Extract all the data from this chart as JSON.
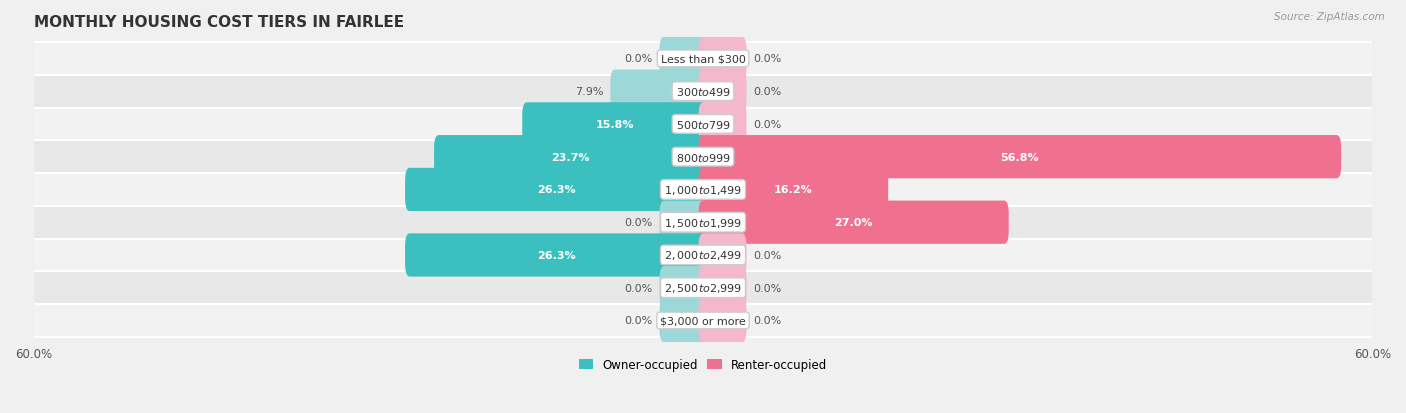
{
  "title": "MONTHLY HOUSING COST TIERS IN FAIRLEE",
  "source": "Source: ZipAtlas.com",
  "categories": [
    "Less than $300",
    "$300 to $499",
    "$500 to $799",
    "$800 to $999",
    "$1,000 to $1,499",
    "$1,500 to $1,999",
    "$2,000 to $2,499",
    "$2,500 to $2,999",
    "$3,000 or more"
  ],
  "owner_values": [
    0.0,
    7.9,
    15.8,
    23.7,
    26.3,
    0.0,
    26.3,
    0.0,
    0.0
  ],
  "renter_values": [
    0.0,
    0.0,
    0.0,
    56.8,
    16.2,
    27.0,
    0.0,
    0.0,
    0.0
  ],
  "owner_color": "#3bbfbf",
  "renter_color": "#f07090",
  "owner_color_light": "#9dd8d8",
  "renter_color_light": "#f5b8cb",
  "row_bg_colors": [
    "#f2f2f2",
    "#e8e8e8"
  ],
  "axis_limit": 60.0,
  "legend_owner": "Owner-occupied",
  "legend_renter": "Renter-occupied",
  "title_fontsize": 11,
  "label_fontsize": 8,
  "category_fontsize": 8,
  "bar_height": 0.52,
  "stub_size": 3.5
}
